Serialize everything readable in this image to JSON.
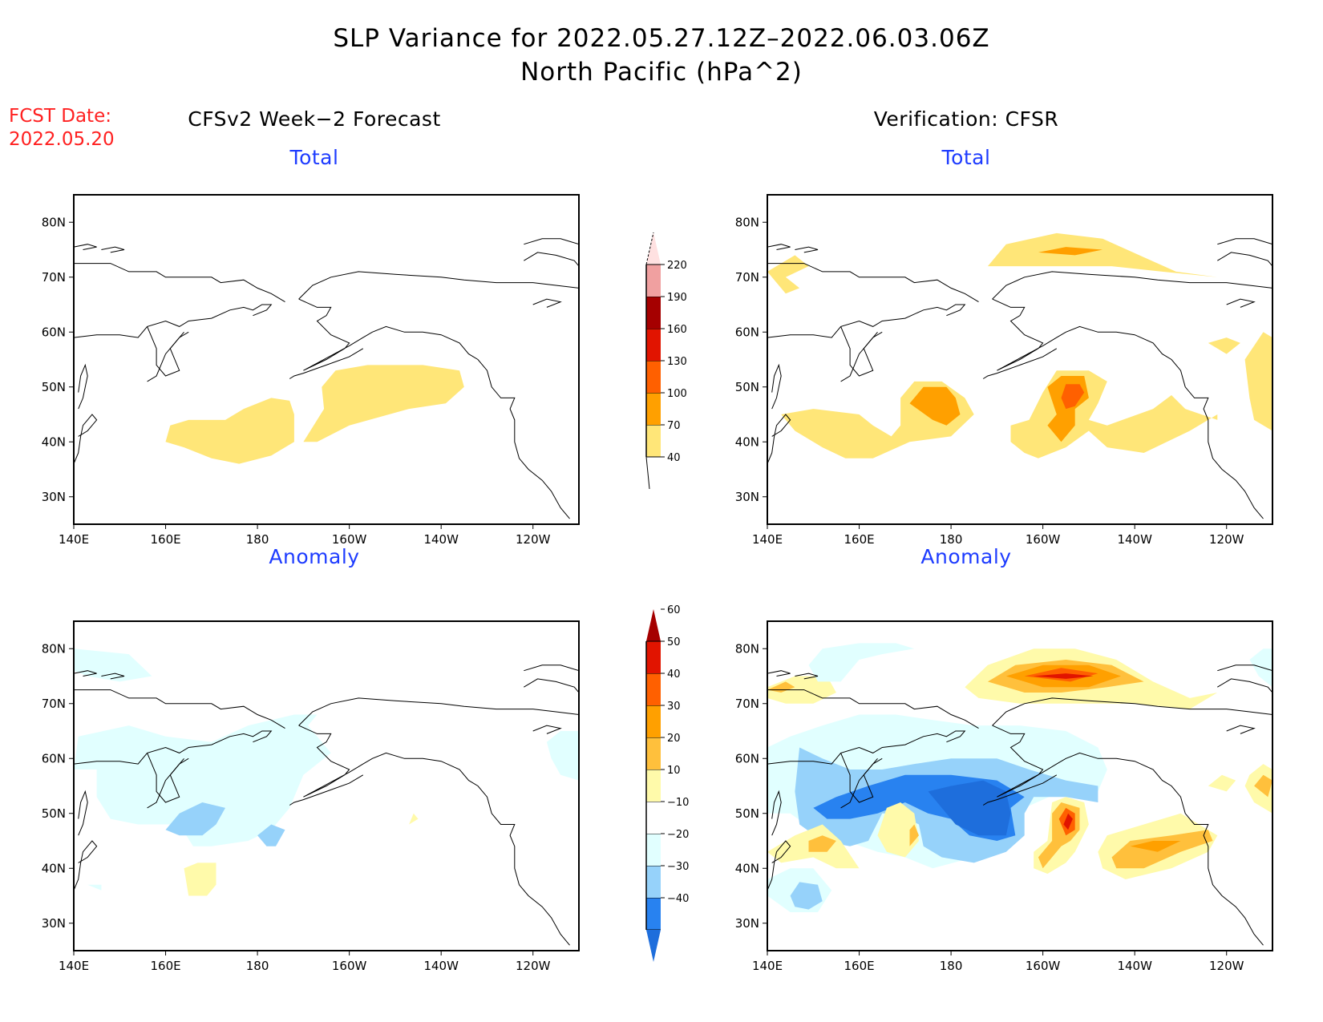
{
  "header": {
    "title_line1": "SLP Variance for 2022.05.27.12Z–2022.06.03.06Z",
    "title_line2": "North Pacific (hPa^2)",
    "fcst_label": "FCST Date:",
    "fcst_date": "2022.05.20"
  },
  "columns": [
    {
      "title": "CFSv2 Week−2 Forecast"
    },
    {
      "title": "Verification: CFSR"
    }
  ],
  "panels": [
    {
      "id": "forecast-total",
      "title": "Total"
    },
    {
      "id": "verification-total",
      "title": "Total"
    },
    {
      "id": "forecast-anomaly",
      "title": "Anomaly"
    },
    {
      "id": "verification-anomaly",
      "title": "Anomaly"
    }
  ],
  "chart_data": [
    {
      "type": "heatmap",
      "title": "CFSv2 Week-2 Forecast — Total",
      "xlabel": "",
      "ylabel": "",
      "x_range": [
        "140E",
        "110W"
      ],
      "y_range": [
        "25N",
        "85N"
      ],
      "x_ticks": [
        "140E",
        "160E",
        "180",
        "160W",
        "140W",
        "120W"
      ],
      "y_ticks": [
        "30N",
        "40N",
        "50N",
        "60N",
        "70N",
        "80N"
      ],
      "regions": [
        {
          "level": "40-70",
          "center": [
            187,
            43
          ],
          "desc": "west-central Pacific band"
        },
        {
          "level": "40-70",
          "center": [
            210,
            47
          ],
          "desc": "Gulf of Alaska / NE Pacific band"
        }
      ]
    },
    {
      "type": "heatmap",
      "title": "Verification: CFSR — Total",
      "xlabel": "",
      "ylabel": "",
      "x_range": [
        "140E",
        "110W"
      ],
      "y_range": [
        "25N",
        "85N"
      ],
      "x_ticks": [
        "140E",
        "160E",
        "180",
        "160W",
        "140W",
        "120W"
      ],
      "y_ticks": [
        "30N",
        "40N",
        "50N",
        "60N",
        "70N",
        "80N"
      ],
      "regions": [
        {
          "level": "70-100",
          "center": [
            175,
            47
          ]
        },
        {
          "level": "100-130",
          "center": [
            205,
            48
          ],
          "max_level": "130-160"
        },
        {
          "level": "70-100",
          "center": [
            215,
            75
          ]
        },
        {
          "level": "40-70",
          "center": [
            225,
            43
          ]
        }
      ]
    },
    {
      "type": "heatmap",
      "title": "CFSv2 Week-2 Forecast — Anomaly",
      "xlabel": "",
      "ylabel": "",
      "x_range": [
        "140E",
        "110W"
      ],
      "y_range": [
        "25N",
        "85N"
      ],
      "x_ticks": [
        "140E",
        "160E",
        "180",
        "160W",
        "140W",
        "120W"
      ],
      "y_ticks": [
        "30N",
        "40N",
        "50N",
        "60N",
        "70N",
        "80N"
      ],
      "regions": [
        {
          "level": "-20 to -30",
          "center": [
            170,
            51
          ]
        },
        {
          "level": "-20 to -30",
          "center": [
            191,
            48
          ]
        },
        {
          "level": "10-20",
          "center": [
            172,
            38
          ]
        },
        {
          "level": "-10 to -20",
          "center": [
            185,
            58
          ],
          "desc": "broad Bering Sea area"
        }
      ]
    },
    {
      "type": "heatmap",
      "title": "Verification: CFSR — Anomaly",
      "xlabel": "",
      "ylabel": "",
      "x_range": [
        "140E",
        "110W"
      ],
      "y_range": [
        "25N",
        "85N"
      ],
      "x_ticks": [
        "140E",
        "160E",
        "180",
        "160W",
        "140W",
        "120W"
      ],
      "y_ticks": [
        "30N",
        "40N",
        "50N",
        "60N",
        "70N",
        "80N"
      ],
      "regions": [
        {
          "level": "< -40",
          "center": [
            188,
            52
          ],
          "desc": "deep negative over Aleutians"
        },
        {
          "level": "50-60",
          "center": [
            206,
            48
          ],
          "desc": "strong positive max"
        },
        {
          "level": "50-60",
          "center": [
            214,
            75
          ],
          "desc": "Arctic positive"
        },
        {
          "level": "30-40",
          "center": [
            225,
            43
          ]
        },
        {
          "level": "20-30",
          "center": [
            156,
            44
          ]
        },
        {
          "level": "-20 to -30",
          "center": [
            153,
            36
          ]
        }
      ]
    }
  ],
  "colorbars": {
    "total": {
      "labels": [
        "40",
        "70",
        "100",
        "130",
        "160",
        "190",
        "220"
      ],
      "colors": [
        "#ffe678",
        "#ffa000",
        "#ff6000",
        "#e11400",
        "#a50000",
        "#f0a0a0",
        "#ffe1e1"
      ]
    },
    "anomaly": {
      "labels": [
        "−40",
        "−30",
        "−20",
        "−10",
        "10",
        "20",
        "30",
        "40",
        "50",
        "60"
      ],
      "colors": [
        "#1e6edc",
        "#2882f0",
        "#96d2fa",
        "#e1ffff",
        "#ffffff",
        "#fffaaa",
        "#ffc03c",
        "#ffa000",
        "#ff6000",
        "#e11400",
        "#a50000"
      ]
    }
  }
}
